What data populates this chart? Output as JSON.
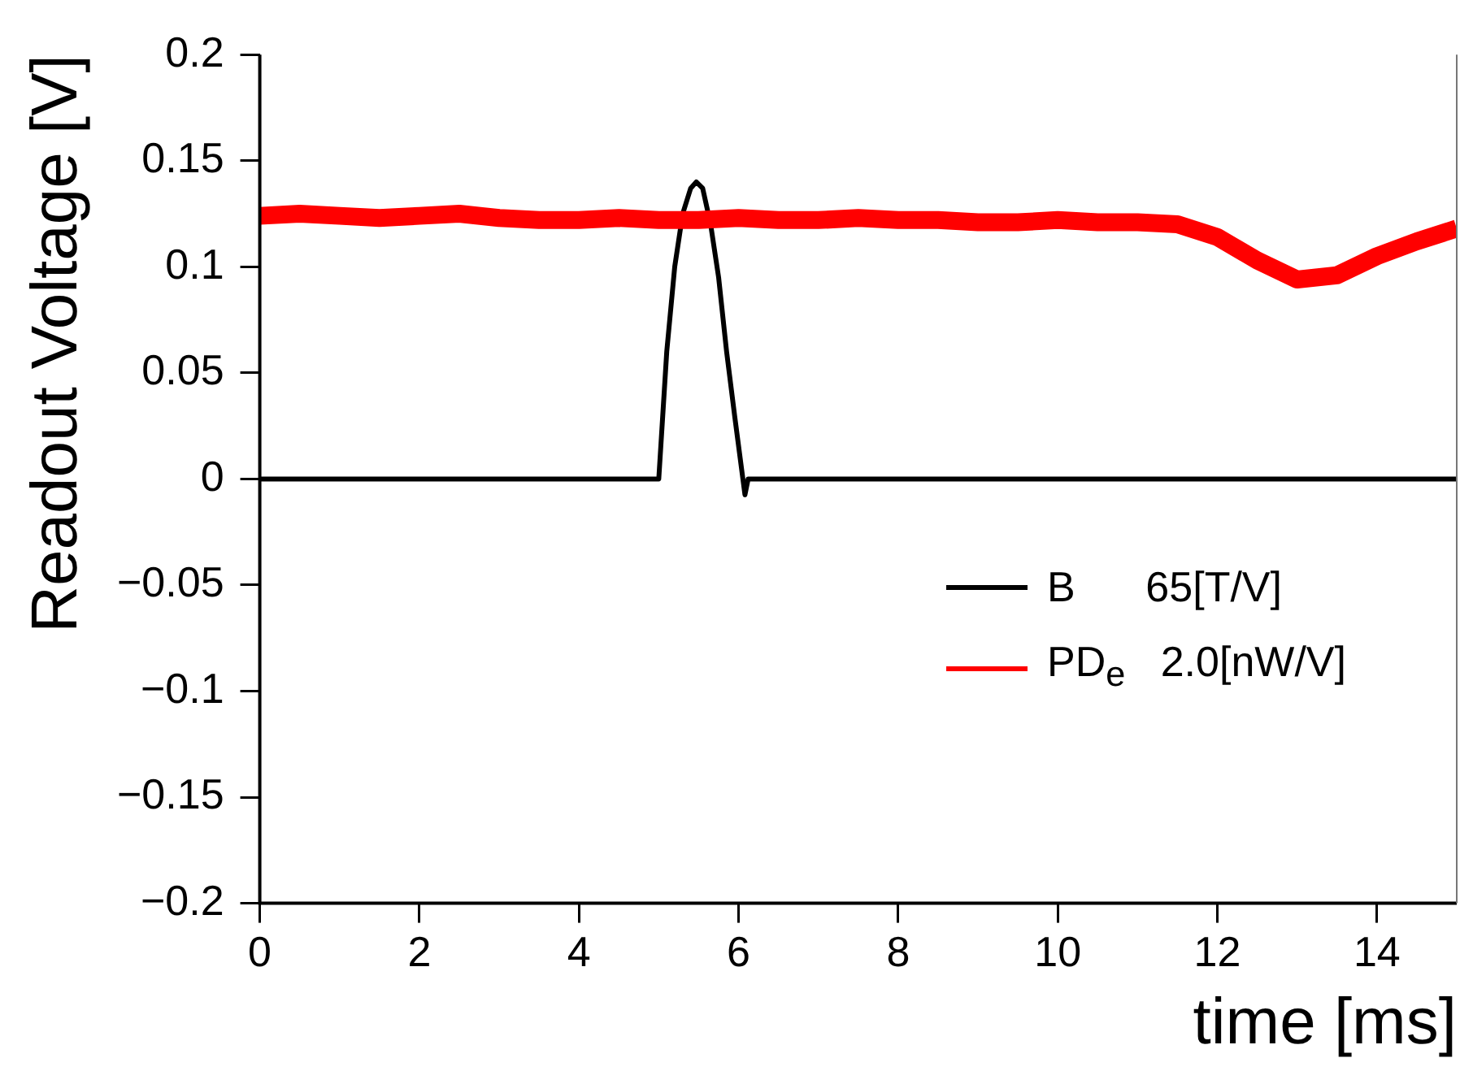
{
  "chart_data": {
    "type": "line",
    "xlabel": "time [ms]",
    "ylabel": "Readout Voltage [V]",
    "xlim": [
      0,
      15
    ],
    "xticks": [
      0,
      2,
      4,
      6,
      8,
      10,
      12,
      14
    ],
    "ylim": [
      -0.2,
      0.2
    ],
    "yticks": [
      {
        "value": -0.2,
        "label": "−0.2"
      },
      {
        "value": -0.15,
        "label": "−0.15"
      },
      {
        "value": -0.1,
        "label": "−0.1"
      },
      {
        "value": -0.05,
        "label": "−0.05"
      },
      0,
      0.05,
      0.1,
      0.15,
      0.2
    ],
    "grid": false,
    "legend": "right",
    "marker": "none",
    "line_style": "solid",
    "series": [
      {
        "name": "B      65[T/V]",
        "color": "#000000",
        "x": [
          0,
          5.0,
          5.1,
          5.2,
          5.3,
          5.4,
          5.47,
          5.55,
          5.65,
          5.75,
          5.85,
          5.95,
          6.08,
          6.12,
          15
        ],
        "values": [
          0,
          0,
          0.06,
          0.1,
          0.125,
          0.137,
          0.14,
          0.137,
          0.12,
          0.095,
          0.06,
          0.03,
          -0.0075,
          0,
          0
        ]
      },
      {
        "name": "PD$_{e}$   2.0[nW/V]",
        "color": "#ff0000",
        "x": [
          0,
          0.5,
          1,
          1.5,
          2,
          2.5,
          3,
          3.5,
          4,
          4.5,
          5,
          5.5,
          6,
          6.5,
          7,
          7.5,
          8,
          8.5,
          9,
          9.5,
          10,
          10.5,
          11,
          11.5,
          12,
          12.5,
          13,
          13.5,
          14,
          14.5,
          15
        ],
        "values": [
          0.124,
          0.125,
          0.124,
          0.123,
          0.124,
          0.125,
          0.123,
          0.122,
          0.122,
          0.123,
          0.122,
          0.122,
          0.123,
          0.122,
          0.122,
          0.123,
          0.122,
          0.122,
          0.121,
          0.121,
          0.122,
          0.121,
          0.121,
          0.12,
          0.114,
          0.103,
          0.094,
          0.096,
          0.105,
          0.112,
          0.118
        ]
      }
    ]
  }
}
